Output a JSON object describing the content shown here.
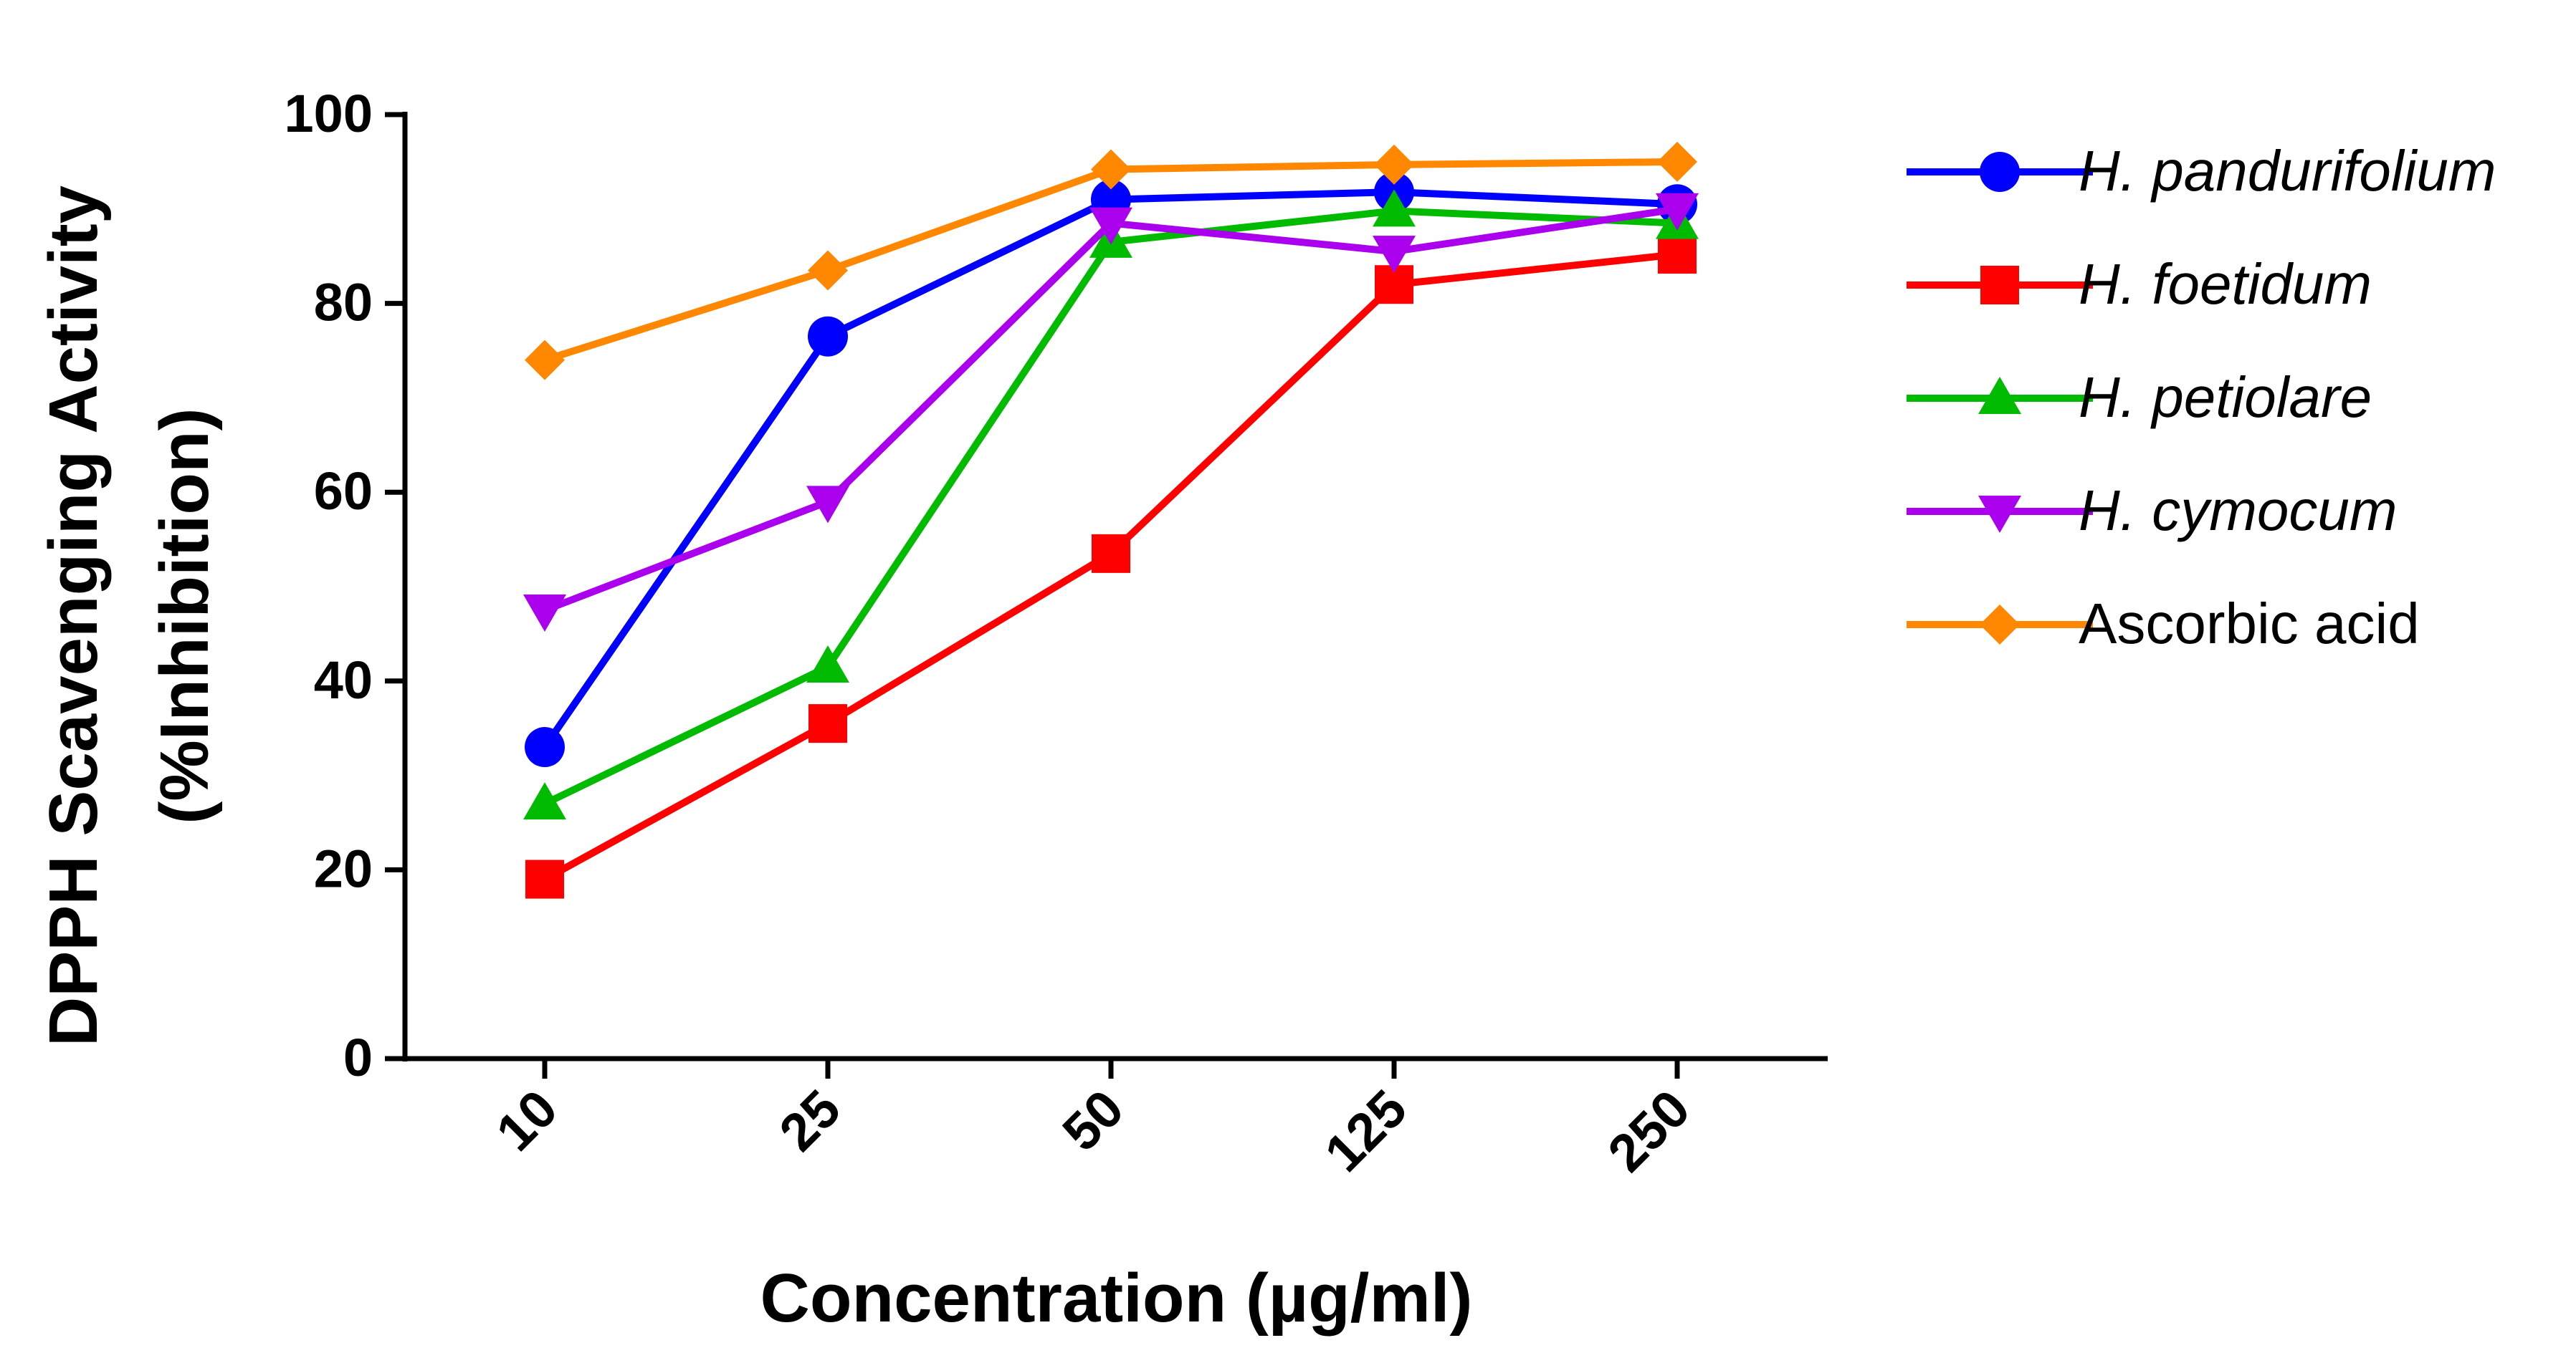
{
  "chart_data": {
    "type": "line",
    "title": "",
    "xlabel": "Concentration (µg/ml)",
    "ylabel_line1": "DPPH Scavenging Activity",
    "ylabel_line2": "(%Inhibition)",
    "categories": [
      "10",
      "25",
      "50",
      "125",
      "250"
    ],
    "ylim": [
      0,
      100
    ],
    "yticks": [
      "0",
      "20",
      "40",
      "60",
      "80",
      "100"
    ],
    "grid": false,
    "legend_position": "right",
    "series": [
      {
        "name": "H. pandurifolium",
        "italic": true,
        "color": "#0000ff",
        "marker": "circle",
        "values": [
          33,
          76.5,
          91,
          91.8,
          90.5
        ]
      },
      {
        "name": "H. foetidum",
        "italic": true,
        "color": "#ff0000",
        "marker": "square",
        "values": [
          19,
          35.5,
          53.5,
          82,
          85.2
        ]
      },
      {
        "name": "H. petiolare",
        "italic": true,
        "color": "#00bb00",
        "marker": "triangle-up",
        "values": [
          27,
          41.5,
          86.5,
          89.8,
          88.5
        ]
      },
      {
        "name": "H. cymocum",
        "italic": true,
        "color": "#aa00ee",
        "marker": "triangle-down",
        "values": [
          47.5,
          59,
          88.5,
          85.5,
          90
        ]
      },
      {
        "name": "Ascorbic acid",
        "italic": false,
        "color": "#ff8800",
        "marker": "diamond",
        "values": [
          74,
          83.5,
          94.2,
          94.7,
          95
        ]
      }
    ]
  }
}
